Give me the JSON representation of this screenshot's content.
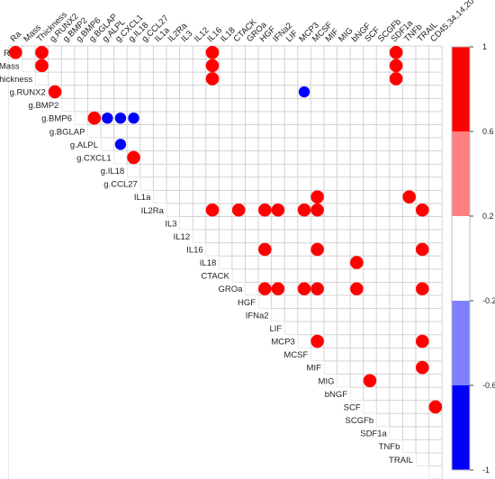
{
  "chart_data": {
    "type": "heatmap",
    "title": "",
    "variables": [
      "Ra",
      "Mass",
      "Thickness",
      "g.RUNX2",
      "g.BMP2",
      "g.BMP6",
      "g.BGLAP",
      "g.ALPL",
      "g.CXCL1",
      "g.IL18",
      "g.CCL27",
      "IL1a",
      "IL2Ra",
      "IL3",
      "IL12",
      "IL16",
      "IL18",
      "CTACK",
      "GROa",
      "HGF",
      "IFNa2",
      "LIF",
      "MCP3",
      "MCSF",
      "MIF",
      "MIG",
      "bNGF",
      "SCF",
      "SCGFb",
      "SDF1a",
      "TNFb",
      "TRAIL",
      "CD45,34,14,20"
    ],
    "cells": [
      {
        "row": "Ra",
        "col": "Ra",
        "value": 1
      },
      {
        "row": "Ra",
        "col": "Thickness",
        "value": 1
      },
      {
        "row": "Ra",
        "col": "IL16",
        "value": 1
      },
      {
        "row": "Ra",
        "col": "SDF1a",
        "value": 1
      },
      {
        "row": "Mass",
        "col": "Thickness",
        "value": 1
      },
      {
        "row": "Mass",
        "col": "IL16",
        "value": 1
      },
      {
        "row": "Mass",
        "col": "SDF1a",
        "value": 1
      },
      {
        "row": "Thickness",
        "col": "IL16",
        "value": 1
      },
      {
        "row": "Thickness",
        "col": "SDF1a",
        "value": 1
      },
      {
        "row": "g.RUNX2",
        "col": "g.RUNX2",
        "value": 1
      },
      {
        "row": "g.RUNX2",
        "col": "MCP3",
        "value": -1
      },
      {
        "row": "g.BMP6",
        "col": "g.BGLAP",
        "value": 1
      },
      {
        "row": "g.BMP6",
        "col": "g.ALPL",
        "value": -1
      },
      {
        "row": "g.BMP6",
        "col": "g.CXCL1",
        "value": -1
      },
      {
        "row": "g.BMP6",
        "col": "g.IL18",
        "value": -1
      },
      {
        "row": "g.ALPL",
        "col": "g.CXCL1",
        "value": -1
      },
      {
        "row": "g.CXCL1",
        "col": "g.IL18",
        "value": 1
      },
      {
        "row": "IL1a",
        "col": "MCSF",
        "value": 1
      },
      {
        "row": "IL1a",
        "col": "TNFb",
        "value": 1
      },
      {
        "row": "IL2Ra",
        "col": "IL16",
        "value": 1
      },
      {
        "row": "IL2Ra",
        "col": "CTACK",
        "value": 1
      },
      {
        "row": "IL2Ra",
        "col": "HGF",
        "value": 1
      },
      {
        "row": "IL2Ra",
        "col": "IFNa2",
        "value": 1
      },
      {
        "row": "IL2Ra",
        "col": "MCP3",
        "value": 1
      },
      {
        "row": "IL2Ra",
        "col": "MCSF",
        "value": 1
      },
      {
        "row": "IL2Ra",
        "col": "TRAIL",
        "value": 1
      },
      {
        "row": "IL16",
        "col": "HGF",
        "value": 1
      },
      {
        "row": "IL16",
        "col": "MCSF",
        "value": 1
      },
      {
        "row": "IL16",
        "col": "TRAIL",
        "value": 1
      },
      {
        "row": "IL18",
        "col": "bNGF",
        "value": 1
      },
      {
        "row": "GROa",
        "col": "HGF",
        "value": 1
      },
      {
        "row": "GROa",
        "col": "IFNa2",
        "value": 1
      },
      {
        "row": "GROa",
        "col": "MCP3",
        "value": 1
      },
      {
        "row": "GROa",
        "col": "MCSF",
        "value": 1
      },
      {
        "row": "GROa",
        "col": "bNGF",
        "value": 1
      },
      {
        "row": "GROa",
        "col": "TRAIL",
        "value": 1
      },
      {
        "row": "MCP3",
        "col": "MCSF",
        "value": 1
      },
      {
        "row": "MCP3",
        "col": "TRAIL",
        "value": 1
      },
      {
        "row": "MIF",
        "col": "TRAIL",
        "value": 1
      },
      {
        "row": "MIG",
        "col": "SCF",
        "value": 1
      },
      {
        "row": "SCF",
        "col": "CD45,34,14,20",
        "value": 1
      }
    ],
    "colorbar": {
      "ticks": [
        "1",
        "0.6",
        "0.2",
        "-0.2",
        "-0.6",
        "-1"
      ],
      "bands": [
        {
          "from": 1,
          "to": 0.6,
          "color": "#ff0000"
        },
        {
          "from": 0.6,
          "to": 0.2,
          "color": "#ff8080"
        },
        {
          "from": 0.2,
          "to": -0.2,
          "color": "#ffffff"
        },
        {
          "from": -0.2,
          "to": -0.6,
          "color": "#8080ff"
        },
        {
          "from": -0.6,
          "to": -1,
          "color": "#0000ff"
        }
      ]
    },
    "colors": {
      "positive": "#ff0000",
      "negative": "#0000ff",
      "grid": "#d3d3d3"
    }
  }
}
